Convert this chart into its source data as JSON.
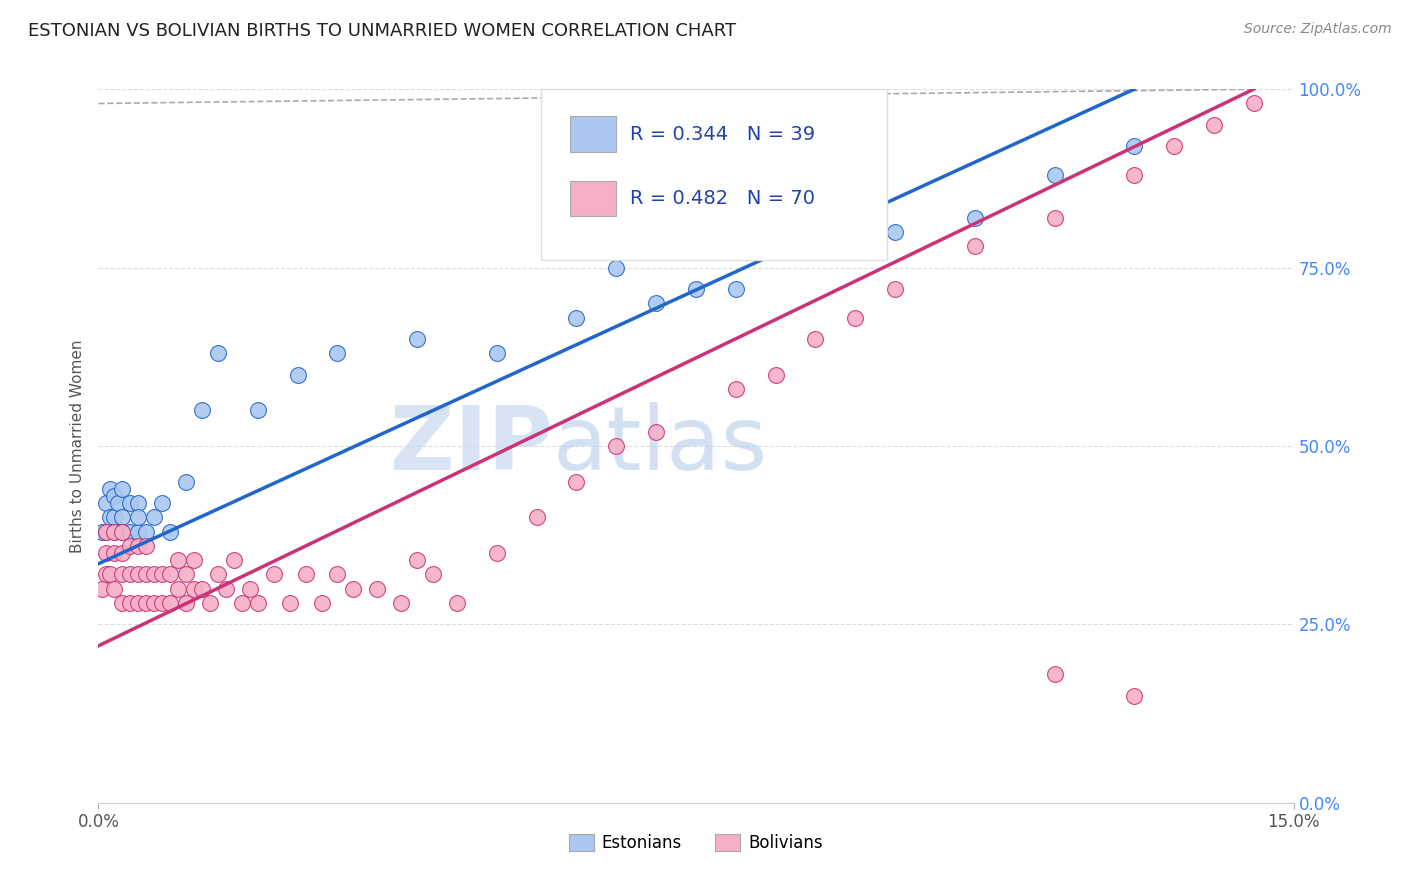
{
  "title": "ESTONIAN VS BOLIVIAN BIRTHS TO UNMARRIED WOMEN CORRELATION CHART",
  "source": "Source: ZipAtlas.com",
  "ylabel": "Births to Unmarried Women",
  "xlim": [
    0.0,
    0.15
  ],
  "ylim": [
    0.0,
    1.0
  ],
  "ytick_labels": [
    "0.0%",
    "25.0%",
    "50.0%",
    "75.0%",
    "100.0%"
  ],
  "ytick_positions": [
    0.0,
    0.25,
    0.5,
    0.75,
    1.0
  ],
  "estonian_R": 0.344,
  "estonian_N": 39,
  "bolivian_R": 0.482,
  "bolivian_N": 70,
  "estonian_color": "#aac8f0",
  "bolivian_color": "#f5b0c8",
  "estonian_line_color": "#2266cc",
  "bolivian_line_color": "#cc3377",
  "legend_label_estonian": "Estonians",
  "legend_label_bolivian": "Bolivians",
  "background_color": "#ffffff",
  "grid_color": "#dddddd",
  "title_color": "#222222",
  "watermark_zip": "ZIP",
  "watermark_atlas": "atlas",
  "estonian_x": [
    0.0005,
    0.001,
    0.001,
    0.0015,
    0.0015,
    0.002,
    0.002,
    0.002,
    0.0025,
    0.003,
    0.003,
    0.003,
    0.004,
    0.004,
    0.005,
    0.005,
    0.005,
    0.006,
    0.007,
    0.008,
    0.009,
    0.011,
    0.013,
    0.015,
    0.02,
    0.025,
    0.03,
    0.04,
    0.05,
    0.06,
    0.065,
    0.07,
    0.075,
    0.08,
    0.09,
    0.1,
    0.11,
    0.12,
    0.13
  ],
  "estonian_y": [
    0.38,
    0.42,
    0.38,
    0.4,
    0.44,
    0.4,
    0.43,
    0.38,
    0.42,
    0.4,
    0.38,
    0.44,
    0.38,
    0.42,
    0.38,
    0.42,
    0.4,
    0.38,
    0.4,
    0.42,
    0.38,
    0.45,
    0.55,
    0.63,
    0.55,
    0.6,
    0.63,
    0.65,
    0.63,
    0.68,
    0.75,
    0.7,
    0.72,
    0.72,
    0.78,
    0.8,
    0.82,
    0.88,
    0.92
  ],
  "bolivian_x": [
    0.0005,
    0.001,
    0.001,
    0.001,
    0.0015,
    0.002,
    0.002,
    0.002,
    0.003,
    0.003,
    0.003,
    0.003,
    0.004,
    0.004,
    0.004,
    0.005,
    0.005,
    0.005,
    0.006,
    0.006,
    0.006,
    0.007,
    0.007,
    0.008,
    0.008,
    0.009,
    0.009,
    0.01,
    0.01,
    0.011,
    0.011,
    0.012,
    0.012,
    0.013,
    0.014,
    0.015,
    0.016,
    0.017,
    0.018,
    0.019,
    0.02,
    0.022,
    0.024,
    0.026,
    0.028,
    0.03,
    0.032,
    0.035,
    0.038,
    0.04,
    0.042,
    0.045,
    0.05,
    0.055,
    0.06,
    0.065,
    0.07,
    0.08,
    0.085,
    0.09,
    0.095,
    0.1,
    0.11,
    0.12,
    0.13,
    0.135,
    0.14,
    0.145,
    0.12,
    0.13
  ],
  "bolivian_y": [
    0.3,
    0.32,
    0.35,
    0.38,
    0.32,
    0.3,
    0.35,
    0.38,
    0.28,
    0.32,
    0.35,
    0.38,
    0.28,
    0.32,
    0.36,
    0.28,
    0.32,
    0.36,
    0.28,
    0.32,
    0.36,
    0.28,
    0.32,
    0.28,
    0.32,
    0.28,
    0.32,
    0.3,
    0.34,
    0.28,
    0.32,
    0.3,
    0.34,
    0.3,
    0.28,
    0.32,
    0.3,
    0.34,
    0.28,
    0.3,
    0.28,
    0.32,
    0.28,
    0.32,
    0.28,
    0.32,
    0.3,
    0.3,
    0.28,
    0.34,
    0.32,
    0.28,
    0.35,
    0.4,
    0.45,
    0.5,
    0.52,
    0.58,
    0.6,
    0.65,
    0.68,
    0.72,
    0.78,
    0.82,
    0.88,
    0.92,
    0.95,
    0.98,
    0.18,
    0.15
  ],
  "estonian_line_x0": 0.0,
  "estonian_line_y0": 0.335,
  "estonian_line_x1": 0.13,
  "estonian_line_y1": 1.0,
  "bolivian_line_x0": 0.0,
  "bolivian_line_y0": 0.22,
  "bolivian_line_x1": 0.145,
  "bolivian_line_y1": 1.0,
  "dashed_line_x0": 0.0,
  "dashed_line_y0": 0.98,
  "dashed_line_x1": 0.145,
  "dashed_line_y1": 1.0
}
